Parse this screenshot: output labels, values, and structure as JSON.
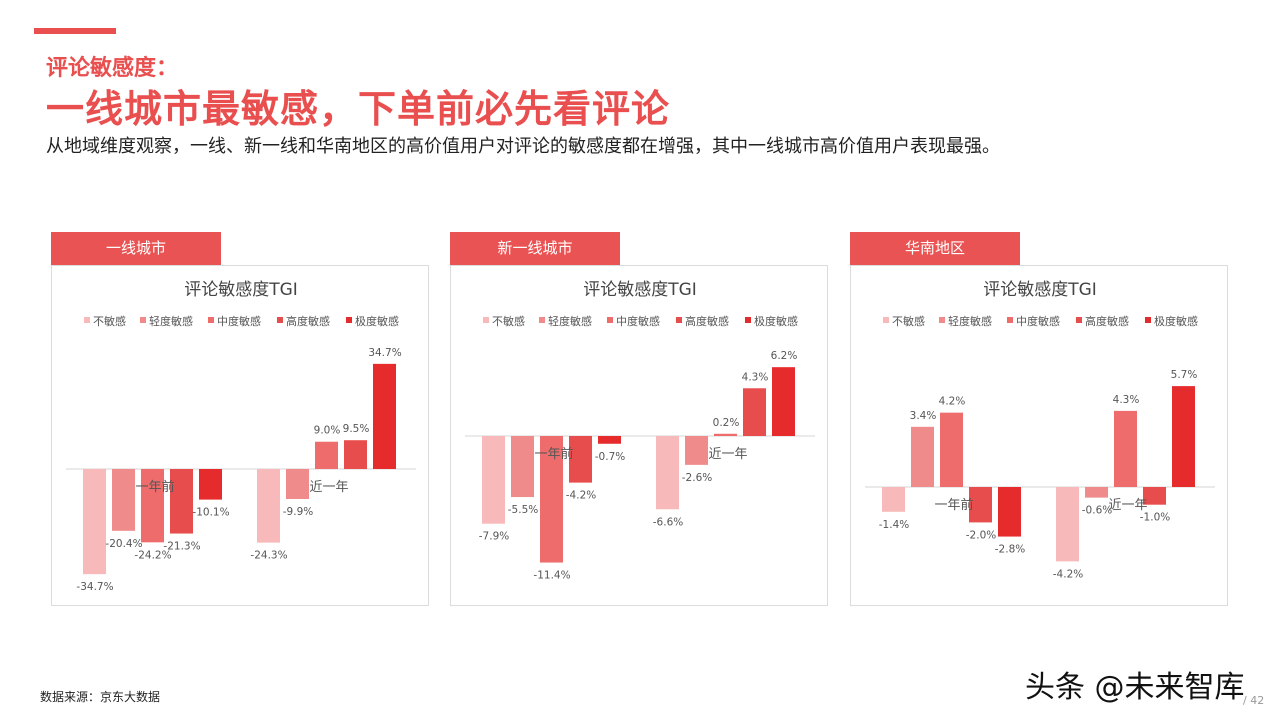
{
  "header": {
    "kicker": "评论敏感度：",
    "headline": "一线城市最敏感，下单前必先看评论",
    "subtitle": "从地域维度观察，一线、新一线和华南地区的高价值用户对评论的敏感度都在增强，其中一线城市高价值用户表现最强。"
  },
  "footer": {
    "source": "数据来源：京东大数据",
    "watermark": "头条 @未来智库",
    "page": "/ 42"
  },
  "colors": [
    "#f7b9b9",
    "#f08b8b",
    "#ee6c6c",
    "#e84d4d",
    "#e52b2b"
  ],
  "chart_data": [
    {
      "type": "bar",
      "tab": "一线城市",
      "title": "评论敏感度TGI",
      "legend": [
        "不敏感",
        "轻度敏感",
        "中度敏感",
        "高度敏感",
        "极度敏感"
      ],
      "categories": [
        "一年前",
        "近一年"
      ],
      "series": [
        {
          "name": "不敏感",
          "values": [
            -34.7,
            -24.3
          ]
        },
        {
          "name": "轻度敏感",
          "values": [
            -20.4,
            -9.9
          ]
        },
        {
          "name": "中度敏感",
          "values": [
            -24.2,
            9.0
          ]
        },
        {
          "name": "高度敏感",
          "values": [
            -21.3,
            9.5
          ]
        },
        {
          "name": "极度敏感",
          "values": [
            -10.1,
            34.7
          ]
        }
      ],
      "labels": [
        [
          "-34.7%",
          "-20.4%",
          "-24.2%",
          "-21.3%",
          "-10.1%"
        ],
        [
          "-24.3%",
          "-9.9%",
          "9.0%",
          "9.5%",
          "34.7%"
        ]
      ]
    },
    {
      "type": "bar",
      "tab": "新一线城市",
      "title": "评论敏感度TGI",
      "legend": [
        "不敏感",
        "轻度敏感",
        "中度敏感",
        "高度敏感",
        "极度敏感"
      ],
      "categories": [
        "一年前",
        "近一年"
      ],
      "series": [
        {
          "name": "不敏感",
          "values": [
            -7.9,
            -6.6
          ]
        },
        {
          "name": "轻度敏感",
          "values": [
            -5.5,
            -2.6
          ]
        },
        {
          "name": "中度敏感",
          "values": [
            -11.4,
            0.2
          ]
        },
        {
          "name": "高度敏感",
          "values": [
            -4.2,
            4.3
          ]
        },
        {
          "name": "极度敏感",
          "values": [
            -0.7,
            6.2
          ]
        }
      ],
      "labels": [
        [
          "-7.9%",
          "-5.5%",
          "-11.4%",
          "-4.2%",
          "-0.7%"
        ],
        [
          "-6.6%",
          "-2.6%",
          "0.2%",
          "4.3%",
          "6.2%"
        ]
      ]
    },
    {
      "type": "bar",
      "tab": "华南地区",
      "title": "评论敏感度TGI",
      "legend": [
        "不敏感",
        "轻度敏感",
        "中度敏感",
        "高度敏感",
        "极度敏感"
      ],
      "categories": [
        "一年前",
        "近一年"
      ],
      "series": [
        {
          "name": "不敏感",
          "values": [
            -1.4,
            -4.2
          ]
        },
        {
          "name": "轻度敏感",
          "values": [
            3.4,
            -0.6
          ]
        },
        {
          "name": "中度敏感",
          "values": [
            4.2,
            4.3
          ]
        },
        {
          "name": "高度敏感",
          "values": [
            -2.0,
            -1.0
          ]
        },
        {
          "name": "极度敏感",
          "values": [
            -2.8,
            5.7
          ]
        }
      ],
      "labels": [
        [
          "-1.4%",
          "3.4%",
          "4.2%",
          "-2.0%",
          "-2.8%"
        ],
        [
          "-4.2%",
          "-0.6%",
          "4.3%",
          "-1.0%",
          "5.7%"
        ]
      ]
    }
  ]
}
